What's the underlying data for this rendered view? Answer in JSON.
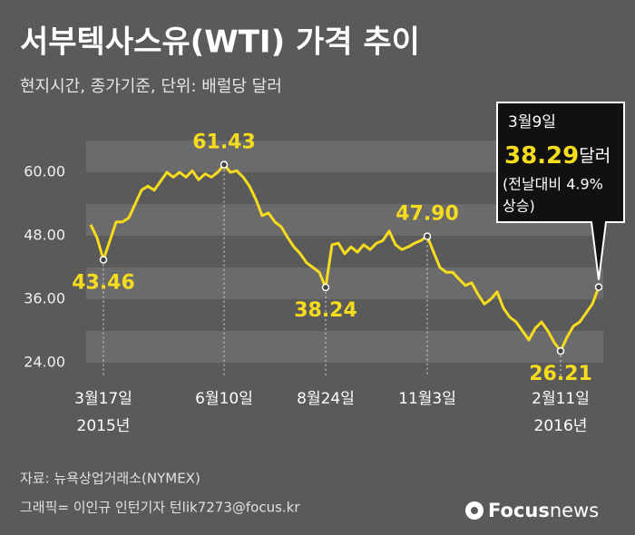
{
  "chart_data": {
    "type": "line",
    "title": "서부텍사스유(WTI) 가격 추이",
    "subtitle": "현지시간, 종가기준, 단위: 배럴당 달러",
    "ylim": [
      24,
      66
    ],
    "yticks": [
      {
        "value": 60,
        "label": "60.00"
      },
      {
        "value": 48,
        "label": "48.00"
      },
      {
        "value": 36,
        "label": "36.00"
      },
      {
        "value": 24,
        "label": "24.00"
      }
    ],
    "categories": [
      null,
      null,
      "3월17일",
      null,
      null,
      null,
      null,
      null,
      null,
      null,
      null,
      null,
      null,
      null,
      null,
      null,
      null,
      null,
      null,
      null,
      null,
      "6월10일",
      null,
      null,
      null,
      null,
      null,
      null,
      null,
      null,
      null,
      null,
      null,
      null,
      null,
      null,
      null,
      "8월24일",
      null,
      null,
      null,
      null,
      null,
      null,
      null,
      null,
      null,
      null,
      null,
      null,
      null,
      null,
      null,
      "11월3일",
      null,
      null,
      null,
      null,
      null,
      null,
      null,
      null,
      null,
      null,
      null,
      null,
      null,
      null,
      null,
      null,
      null,
      null,
      null,
      null,
      "2월11일",
      null,
      null,
      null,
      null,
      null,
      null
    ],
    "category_years": [
      null,
      null,
      "2015년",
      null,
      null,
      null,
      null,
      null,
      null,
      null,
      null,
      null,
      null,
      null,
      null,
      null,
      null,
      null,
      null,
      null,
      null,
      null,
      null,
      null,
      null,
      null,
      null,
      null,
      null,
      null,
      null,
      null,
      null,
      null,
      null,
      null,
      null,
      null,
      null,
      null,
      null,
      null,
      null,
      null,
      null,
      null,
      null,
      null,
      null,
      null,
      null,
      null,
      null,
      null,
      null,
      null,
      null,
      null,
      null,
      null,
      null,
      null,
      null,
      null,
      null,
      null,
      null,
      null,
      null,
      null,
      null,
      null,
      null,
      null,
      "2016년",
      null,
      null,
      null,
      null,
      null,
      null
    ],
    "series": [
      {
        "name": "WTI",
        "color": "#f7dc1e",
        "values": [
          50.1,
          47.6,
          43.46,
          47,
          50.6,
          50.6,
          51.4,
          54,
          56.6,
          57.4,
          56.6,
          58.3,
          60,
          59.1,
          60,
          59.1,
          60.3,
          58.6,
          59.7,
          59.1,
          60,
          61.43,
          60,
          60.3,
          59.1,
          57.4,
          54.9,
          51.8,
          52.3,
          50.6,
          49.7,
          47.7,
          45.9,
          44.6,
          42.9,
          42,
          41.1,
          38.24,
          46.3,
          46.6,
          44.6,
          45.9,
          44.9,
          46.3,
          45.4,
          46.6,
          47.1,
          48.9,
          46.3,
          45.4,
          45.9,
          46.6,
          47.1,
          47.9,
          44.9,
          42,
          41.1,
          41.1,
          39.8,
          38.6,
          39.1,
          36.9,
          35.1,
          36,
          37.4,
          34.3,
          32.6,
          31.7,
          30,
          28.3,
          30.5,
          31.7,
          30,
          27.8,
          26.21,
          28.8,
          30.9,
          31.7,
          33.4,
          35.1,
          38.29
        ],
        "value_labels": [
          null,
          null,
          "43.46",
          null,
          null,
          null,
          null,
          null,
          null,
          null,
          null,
          null,
          null,
          null,
          null,
          null,
          null,
          null,
          null,
          null,
          null,
          "61.43",
          null,
          null,
          null,
          null,
          null,
          null,
          null,
          null,
          null,
          null,
          null,
          null,
          null,
          null,
          null,
          "38.24",
          null,
          null,
          null,
          null,
          null,
          null,
          null,
          null,
          null,
          null,
          null,
          null,
          null,
          null,
          null,
          "47.90",
          null,
          null,
          null,
          null,
          null,
          null,
          null,
          null,
          null,
          null,
          null,
          null,
          null,
          null,
          null,
          null,
          null,
          null,
          null,
          null,
          "26.21",
          null,
          null,
          null,
          null,
          null,
          "38.29"
        ]
      }
    ],
    "callout_date": "3월9일",
    "callout_unit": "달러",
    "callout_note": [
      "(전날대비 4.9%",
      "상승)"
    ],
    "source": "자료: 뉴욕상업거래소(NYMEX)",
    "credit": "그래픽= 이인규 인턴기자 턴lik7273@focus.kr",
    "logo": [
      "Focus",
      "news"
    ]
  }
}
